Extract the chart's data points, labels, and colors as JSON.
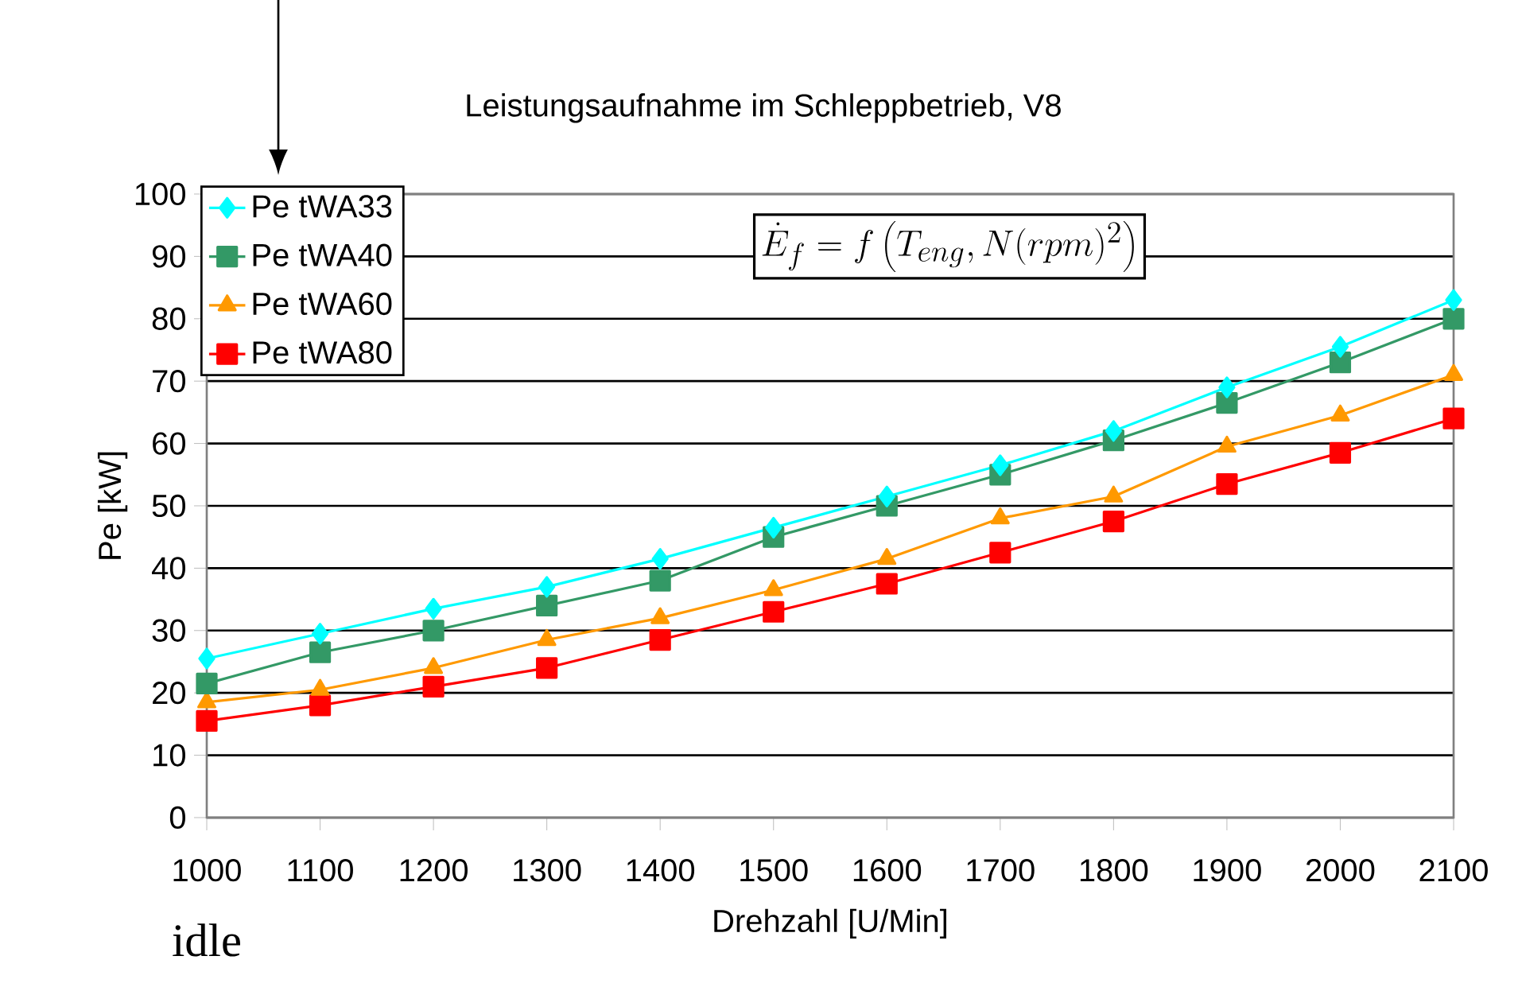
{
  "chart_data": {
    "type": "line",
    "title": "Leistungsaufnahme im Schleppbetrieb, V8",
    "xlabel": "Drehzahl [U/Min]",
    "ylabel": "Pe [kW]",
    "x": [
      1000,
      1100,
      1200,
      1300,
      1400,
      1500,
      1600,
      1700,
      1800,
      1900,
      2000,
      2100
    ],
    "series": [
      {
        "name": "Pe tWA33",
        "color": "#00ffff",
        "marker": "diamond",
        "values": [
          25.5,
          29.5,
          33.5,
          37,
          41.5,
          46.5,
          51.5,
          56.5,
          62,
          69,
          75.5,
          83
        ]
      },
      {
        "name": "Pe tWA40",
        "color": "#339966",
        "marker": "square",
        "values": [
          21.5,
          26.5,
          30,
          34,
          38,
          45,
          50,
          55,
          60.5,
          66.5,
          73,
          80
        ]
      },
      {
        "name": "Pe tWA60",
        "color": "#ff9900",
        "marker": "triangle",
        "values": [
          18.5,
          20.5,
          24,
          28.5,
          32,
          36.5,
          41.5,
          48,
          51.5,
          59.5,
          64.5,
          71
        ]
      },
      {
        "name": "Pe tWA80",
        "color": "#ff0000",
        "marker": "square",
        "values": [
          15.5,
          18,
          21,
          24,
          28.5,
          33,
          37.5,
          42.5,
          47.5,
          53.5,
          58.5,
          64
        ]
      }
    ],
    "xlim": [
      1000,
      2100
    ],
    "xticks": [
      1000,
      1100,
      1200,
      1300,
      1400,
      1500,
      1600,
      1700,
      1800,
      1900,
      2000,
      2100
    ],
    "ylim": [
      0,
      100
    ],
    "yticks": [
      0,
      10,
      20,
      30,
      40,
      50,
      60,
      70,
      80,
      90,
      100
    ],
    "grid": "y",
    "legend": "top left",
    "line_style": "solid",
    "annotations": [
      "\\dot{E}_f = f\\left(T_{eng}, N(rpm)^2\\right)",
      "idle"
    ]
  }
}
